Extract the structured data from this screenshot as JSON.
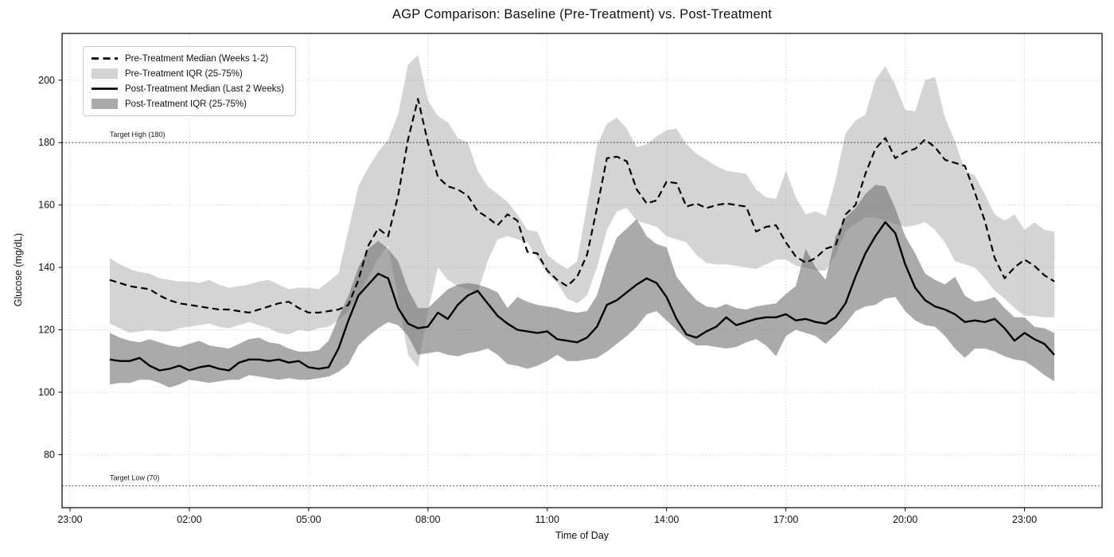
{
  "figure": {
    "background": "#ffffff"
  },
  "chart_data": {
    "type": "line",
    "title": "AGP Comparison: Baseline (Pre-Treatment) vs. Post-Treatment",
    "xlabel": "Time of Day",
    "ylabel": "Glucose (mg/dL)",
    "x_unit": "hours",
    "x_start": 0,
    "x_step_minutes": 15,
    "points": 96,
    "xlim": [
      -1.2,
      24.95
    ],
    "ylim": [
      63,
      215
    ],
    "grid": true,
    "legend_position": "upper-left",
    "line_color": "#000000",
    "grid_color": "#c9c9c9",
    "target_line_color": "#444444",
    "x_ticks": [
      {
        "hour": -1,
        "label": "23:00"
      },
      {
        "hour": 2,
        "label": "02:00"
      },
      {
        "hour": 5,
        "label": "05:00"
      },
      {
        "hour": 8,
        "label": "08:00"
      },
      {
        "hour": 11,
        "label": "11:00"
      },
      {
        "hour": 14,
        "label": "14:00"
      },
      {
        "hour": 17,
        "label": "17:00"
      },
      {
        "hour": 20,
        "label": "20:00"
      },
      {
        "hour": 23,
        "label": "23:00"
      }
    ],
    "y_ticks": [
      80,
      100,
      120,
      140,
      160,
      180,
      200
    ],
    "annotations": [
      {
        "label": "Target High (180)",
        "value": 180
      },
      {
        "label": "Target Low (70)",
        "value": 70
      }
    ],
    "series": [
      {
        "name": "Pre-Treatment Median (Weeks 1-2)",
        "kind": "line",
        "style": "dashed",
        "color": "#000000",
        "width": 2.2,
        "values": [
          136,
          135,
          134,
          133.5,
          133,
          131,
          129.5,
          128.5,
          128,
          127.5,
          127,
          126.5,
          126.5,
          126,
          125.5,
          126.5,
          127.5,
          128.5,
          129,
          127,
          125.5,
          125.5,
          126,
          126.5,
          128,
          136,
          147,
          152.5,
          150,
          163,
          181,
          194,
          180,
          169,
          166,
          165,
          163,
          158,
          156,
          153.5,
          157,
          155,
          145,
          144.5,
          139,
          136,
          134,
          137,
          144,
          159,
          175,
          175.5,
          174,
          165,
          160.5,
          161.5,
          167.5,
          167,
          159.5,
          160.5,
          159,
          160,
          160.5,
          160,
          159.5,
          151.5,
          153,
          153.5,
          148,
          143.5,
          141.5,
          143,
          146,
          147,
          157,
          160,
          170,
          178,
          181.5,
          175,
          177,
          178,
          181,
          178.5,
          174.5,
          173.5,
          172.5,
          164,
          155,
          143,
          136.5,
          140,
          142.5,
          140.5,
          137.5,
          135.5
        ]
      },
      {
        "name": "Pre-Treatment IQR (25-75%)",
        "kind": "band",
        "color": "#808080",
        "opacity": 0.34,
        "upper": [
          143,
          141,
          139.5,
          138.5,
          138,
          136.5,
          136,
          135.5,
          135.5,
          135,
          136,
          134.5,
          133.5,
          134,
          134.5,
          135.5,
          136,
          134.5,
          133,
          133.5,
          133.5,
          133,
          135.5,
          138,
          152,
          166,
          172,
          177,
          181,
          189,
          205,
          208,
          193.5,
          188.5,
          186.5,
          181.5,
          180,
          171,
          166,
          163.5,
          161,
          157,
          152,
          151.5,
          144,
          141.5,
          139.5,
          142,
          160,
          179,
          186,
          188,
          184.5,
          178.5,
          179.5,
          182,
          184,
          184.5,
          179.5,
          176.5,
          174.5,
          172.5,
          171,
          170.5,
          170,
          165,
          162.5,
          162,
          171,
          162.5,
          157,
          158,
          156.5,
          168,
          183,
          187,
          189,
          200,
          204.5,
          198.5,
          190.5,
          190,
          200,
          201,
          188,
          180.5,
          171,
          169.5,
          163.5,
          157,
          155,
          157,
          152,
          154.5,
          152,
          151.5
        ],
        "lower": [
          122,
          120.5,
          119,
          119.5,
          120,
          119.5,
          119.5,
          120.5,
          121,
          121.5,
          122,
          121,
          120.5,
          121.5,
          122.5,
          121.5,
          120.5,
          119,
          118.5,
          120,
          119.5,
          120.5,
          121,
          123,
          126,
          131,
          137,
          143,
          147,
          130,
          112,
          108,
          126,
          140,
          136,
          134,
          133,
          132,
          142,
          149,
          150,
          149,
          148,
          143,
          138,
          135,
          130,
          128.5,
          131,
          140,
          152,
          158,
          159,
          155,
          154,
          153,
          150,
          149,
          148,
          144,
          141.5,
          141,
          141,
          140.5,
          140,
          139.5,
          141,
          142.5,
          142.5,
          140.5,
          140,
          139,
          139,
          144,
          151.5,
          154,
          156,
          156,
          155,
          154,
          153,
          153.5,
          154.5,
          152,
          148,
          142,
          141,
          140,
          136.5,
          132.5,
          130,
          127,
          124.5,
          124.5,
          124,
          124
        ]
      },
      {
        "name": "Post-Treatment Median (Last 2 Weeks)",
        "kind": "line",
        "style": "solid",
        "color": "#000000",
        "width": 2.4,
        "values": [
          110.5,
          110,
          110,
          111,
          108.5,
          107,
          107.5,
          108.5,
          107,
          108,
          108.5,
          107.5,
          107,
          109.5,
          110.5,
          110.5,
          110,
          110.5,
          109.5,
          110,
          108,
          107.5,
          108,
          114,
          123,
          131,
          134.5,
          138,
          136.5,
          127,
          122,
          120.5,
          121,
          125.5,
          123.5,
          128,
          131,
          132.5,
          128.5,
          124.5,
          122,
          120,
          119.5,
          119,
          119.5,
          117,
          116.5,
          116,
          117.5,
          121,
          128,
          129.5,
          132,
          134.5,
          136.5,
          135,
          130.5,
          123.5,
          118.5,
          117.5,
          119.5,
          121,
          124,
          121.5,
          122.5,
          123.5,
          124,
          124,
          125,
          123,
          123.5,
          122.5,
          122,
          124,
          128.5,
          137,
          144.5,
          150,
          154.5,
          151,
          141,
          133.5,
          129.5,
          127.5,
          126.5,
          125,
          122.5,
          123,
          122.5,
          123.5,
          120.5,
          116.5,
          119,
          117,
          115.5,
          112
        ]
      },
      {
        "name": "Post-Treatment IQR (25-75%)",
        "kind": "band",
        "color": "#6c6c6c",
        "opacity": 0.58,
        "upper": [
          119,
          117.5,
          116.5,
          116,
          117,
          116,
          115,
          114.5,
          115.5,
          116.5,
          115,
          114.5,
          114,
          115.5,
          117,
          117.5,
          116,
          115.5,
          114,
          113,
          113,
          113.5,
          116.5,
          124,
          131,
          140,
          146,
          148.5,
          146,
          142,
          133,
          127,
          127,
          130,
          133,
          134.5,
          135,
          134.5,
          133.5,
          132,
          127,
          130.5,
          129,
          128,
          127.5,
          127,
          126,
          125.5,
          126,
          131,
          141.5,
          149.5,
          152.5,
          155.5,
          150,
          147.5,
          146.5,
          137,
          133,
          129.5,
          127.5,
          127,
          128.3,
          127,
          126.5,
          127.5,
          128,
          128.5,
          131.5,
          134,
          146,
          140,
          136,
          150,
          156,
          159,
          163.5,
          166.5,
          166,
          159,
          150,
          144.5,
          138,
          136,
          134.5,
          137,
          131,
          129,
          129.5,
          130.5,
          127,
          124,
          124,
          121,
          120.5,
          119
        ],
        "lower": [
          102.5,
          103,
          103,
          104,
          104,
          103,
          101.5,
          102.5,
          104,
          103.5,
          103,
          103.5,
          104,
          104,
          105.5,
          105,
          104.5,
          104,
          104.5,
          104,
          104,
          104.5,
          105,
          106.5,
          109,
          115,
          118,
          120.5,
          122.5,
          121.5,
          118,
          112,
          112.5,
          113,
          112,
          111.5,
          112.5,
          113,
          114,
          112,
          109,
          108.5,
          107.5,
          108.5,
          110,
          112,
          110,
          110,
          110.5,
          111,
          113,
          115.5,
          118,
          121,
          125,
          126,
          123,
          120,
          117,
          115,
          115,
          114.5,
          114,
          114.5,
          116,
          117,
          115,
          111.5,
          118,
          120,
          119,
          118,
          115.5,
          118.5,
          122,
          126,
          127.5,
          128,
          130,
          130.5,
          126,
          123,
          121.5,
          121,
          118,
          114,
          111,
          114,
          114,
          113,
          111.5,
          110.5,
          110,
          108,
          105.5,
          103.5
        ]
      }
    ]
  }
}
